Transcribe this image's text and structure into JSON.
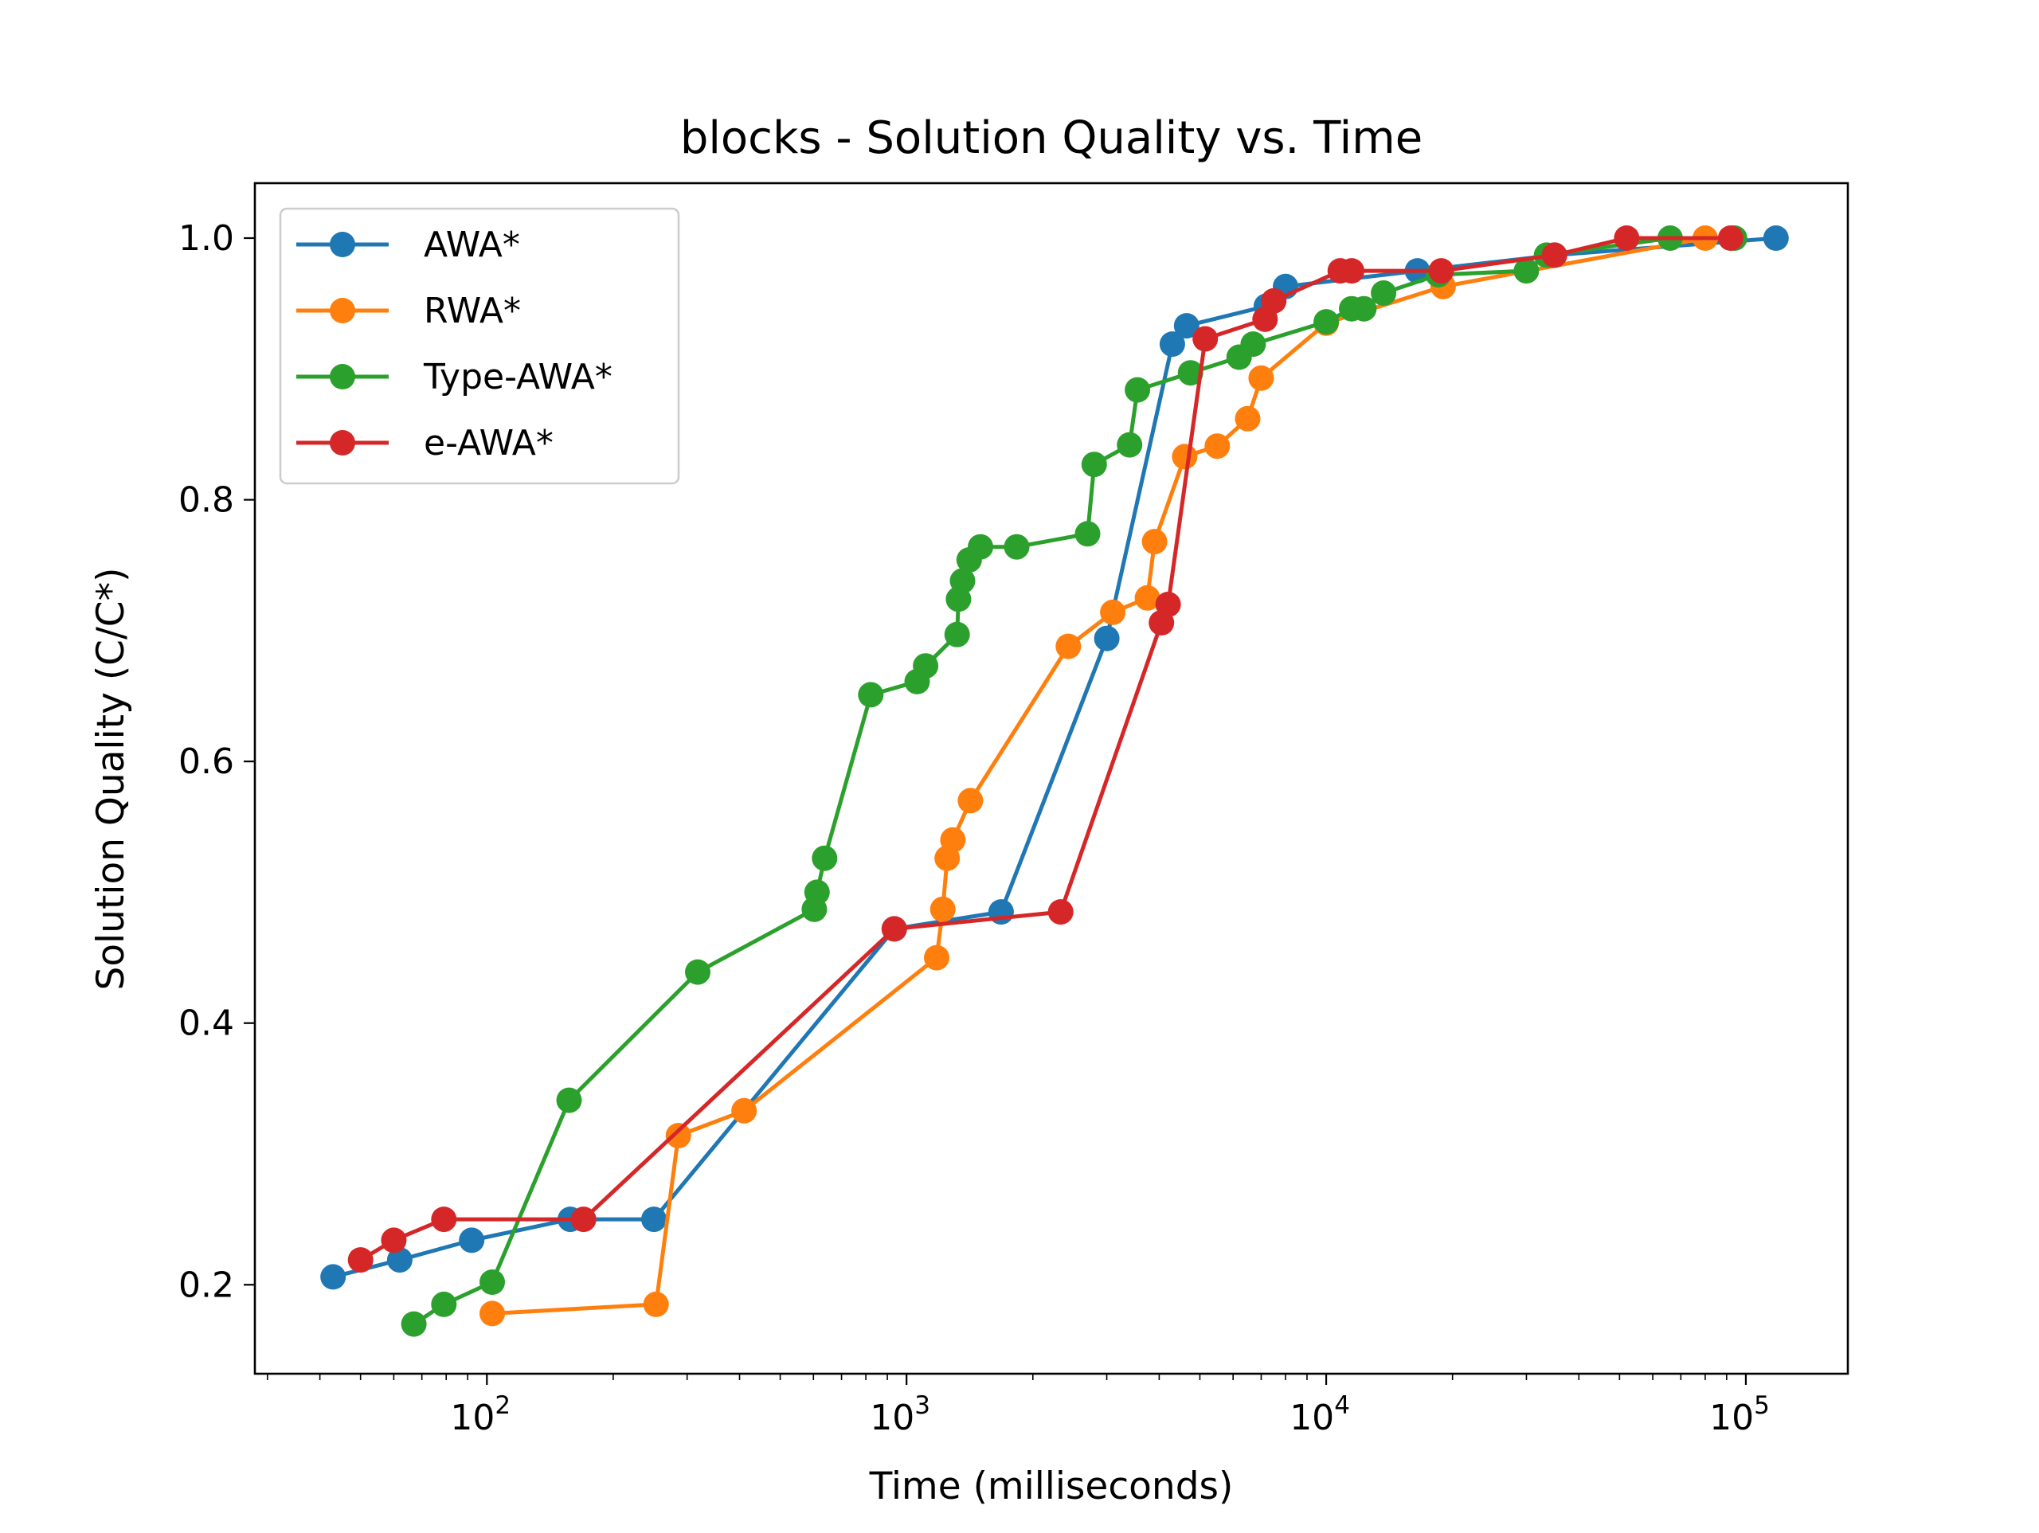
{
  "chart_data": {
    "type": "line",
    "title": "blocks - Solution Quality vs. Time",
    "xlabel": "Time (milliseconds)",
    "ylabel": "Solution Quality (C/C*)",
    "x_scale": "log",
    "xlim": [
      28,
      175000
    ],
    "ylim": [
      0.132,
      1.042
    ],
    "x_ticks": [
      {
        "base": "10",
        "exp": "2",
        "value": 100
      },
      {
        "base": "10",
        "exp": "3",
        "value": 1000
      },
      {
        "base": "10",
        "exp": "4",
        "value": 10000
      },
      {
        "base": "10",
        "exp": "5",
        "value": 100000
      }
    ],
    "y_ticks": [
      {
        "label": "0.2",
        "value": 0.2
      },
      {
        "label": "0.4",
        "value": 0.4
      },
      {
        "label": "0.6",
        "value": 0.6
      },
      {
        "label": "0.8",
        "value": 0.8
      },
      {
        "label": "1.0",
        "value": 1.0
      }
    ],
    "grid": false,
    "legend_position": "top-left",
    "series": [
      {
        "name": "AWA*",
        "color": "#1f77b4",
        "points": [
          [
            43,
            0.206
          ],
          [
            62,
            0.219
          ],
          [
            92,
            0.234
          ],
          [
            158,
            0.25
          ],
          [
            250,
            0.25
          ],
          [
            935,
            0.472
          ],
          [
            1680,
            0.485
          ],
          [
            3000,
            0.694
          ],
          [
            4300,
            0.919
          ],
          [
            4650,
            0.933
          ],
          [
            7200,
            0.948
          ],
          [
            8000,
            0.963
          ],
          [
            16500,
            0.975
          ],
          [
            35000,
            0.987
          ],
          [
            118000,
            1.0
          ]
        ]
      },
      {
        "name": "RWA*",
        "color": "#ff7f0e",
        "points": [
          [
            103,
            0.178
          ],
          [
            253,
            0.185
          ],
          [
            286,
            0.314
          ],
          [
            410,
            0.333
          ],
          [
            1180,
            0.45
          ],
          [
            1220,
            0.487
          ],
          [
            1250,
            0.526
          ],
          [
            1290,
            0.54
          ],
          [
            1420,
            0.57
          ],
          [
            2430,
            0.688
          ],
          [
            3100,
            0.714
          ],
          [
            3750,
            0.725
          ],
          [
            3900,
            0.768
          ],
          [
            4600,
            0.833
          ],
          [
            5500,
            0.841
          ],
          [
            6500,
            0.862
          ],
          [
            7000,
            0.893
          ],
          [
            10000,
            0.935
          ],
          [
            19000,
            0.963
          ],
          [
            80000,
            1.0
          ]
        ]
      },
      {
        "name": "Type-AWA*",
        "color": "#2ca02c",
        "points": [
          [
            67,
            0.17
          ],
          [
            79,
            0.185
          ],
          [
            103,
            0.202
          ],
          [
            157,
            0.341
          ],
          [
            318,
            0.439
          ],
          [
            603,
            0.487
          ],
          [
            612,
            0.5
          ],
          [
            638,
            0.526
          ],
          [
            822,
            0.651
          ],
          [
            1060,
            0.661
          ],
          [
            1110,
            0.673
          ],
          [
            1320,
            0.697
          ],
          [
            1330,
            0.724
          ],
          [
            1360,
            0.738
          ],
          [
            1410,
            0.754
          ],
          [
            1500,
            0.764
          ],
          [
            1830,
            0.764
          ],
          [
            2700,
            0.774
          ],
          [
            2800,
            0.827
          ],
          [
            3400,
            0.842
          ],
          [
            3550,
            0.884
          ],
          [
            4750,
            0.897
          ],
          [
            6200,
            0.909
          ],
          [
            6700,
            0.919
          ],
          [
            10000,
            0.936
          ],
          [
            11500,
            0.946
          ],
          [
            12300,
            0.946
          ],
          [
            13700,
            0.958
          ],
          [
            18500,
            0.972
          ],
          [
            30000,
            0.975
          ],
          [
            33500,
            0.987
          ],
          [
            66000,
            1.0
          ],
          [
            94000,
            1.0
          ]
        ]
      },
      {
        "name": "e-AWA*",
        "color": "#d62728",
        "points": [
          [
            50,
            0.219
          ],
          [
            60,
            0.234
          ],
          [
            79,
            0.25
          ],
          [
            170,
            0.25
          ],
          [
            935,
            0.472
          ],
          [
            2330,
            0.485
          ],
          [
            4050,
            0.706
          ],
          [
            4200,
            0.72
          ],
          [
            5150,
            0.923
          ],
          [
            7150,
            0.938
          ],
          [
            7500,
            0.952
          ],
          [
            10800,
            0.975
          ],
          [
            11500,
            0.975
          ],
          [
            18800,
            0.975
          ],
          [
            35000,
            0.987
          ],
          [
            52000,
            1.0
          ],
          [
            92000,
            1.0
          ]
        ]
      }
    ]
  }
}
